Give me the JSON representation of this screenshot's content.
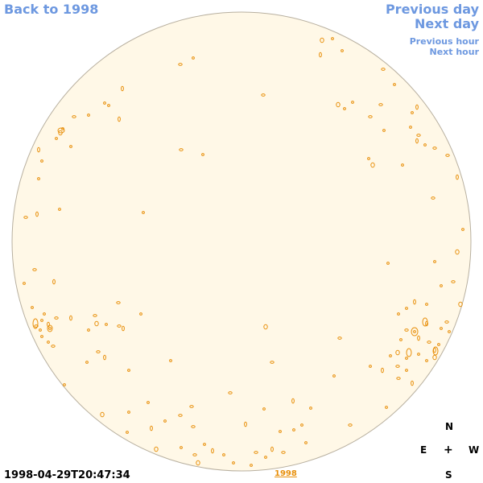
{
  "nav": {
    "back": "Back to 1998",
    "previous_day": "Previous day",
    "next_day": "Next day",
    "previous_hour": "Previous hour",
    "next_hour": "Next hour"
  },
  "timestamp": "1998-04-29T20:47:34",
  "year_link": "1998",
  "compass": {
    "north": "N",
    "east": "E",
    "center": "+",
    "west": "W",
    "south": "S"
  },
  "colors": {
    "disk_fill": "#fff8e7",
    "disk_edge": "#b8b0a0",
    "contour": "#e8900c",
    "link": "#6d98e0"
  }
}
